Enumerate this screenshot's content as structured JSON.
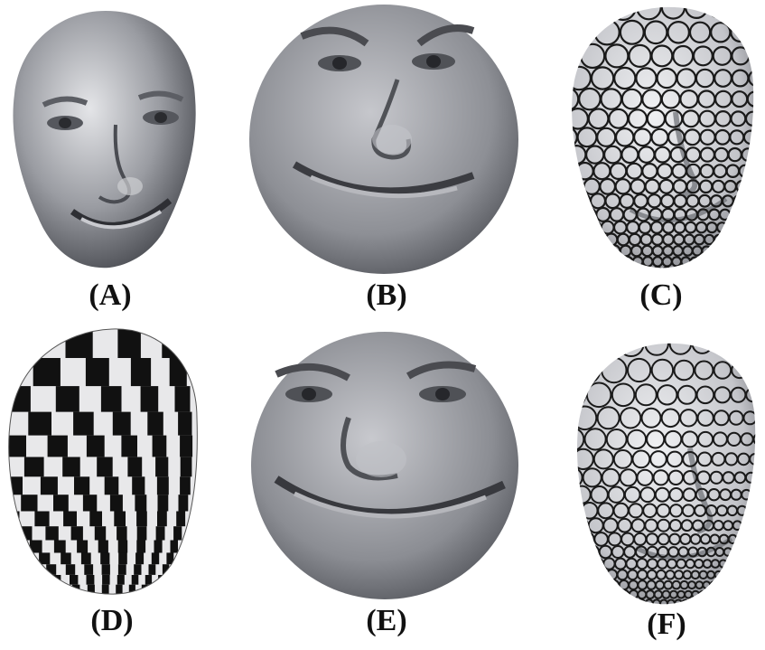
{
  "panels": [
    {
      "id": "A",
      "label": "(A)",
      "content": "face-mesh-render"
    },
    {
      "id": "B",
      "label": "(B)",
      "content": "disk-texture-map"
    },
    {
      "id": "C",
      "label": "(C)",
      "content": "face-circle-packing"
    },
    {
      "id": "D",
      "label": "(D)",
      "content": "face-checkerboard"
    },
    {
      "id": "E",
      "label": "(E)",
      "content": "disk-texture-map"
    },
    {
      "id": "F",
      "label": "(F)",
      "content": "face-circle-packing"
    }
  ],
  "colors": {
    "surface_light": "#d9dade",
    "surface_mid": "#8e9096",
    "surface_dark": "#3c3e44",
    "checker_black": "#111111",
    "circle_stroke": "#1a1a1a"
  }
}
